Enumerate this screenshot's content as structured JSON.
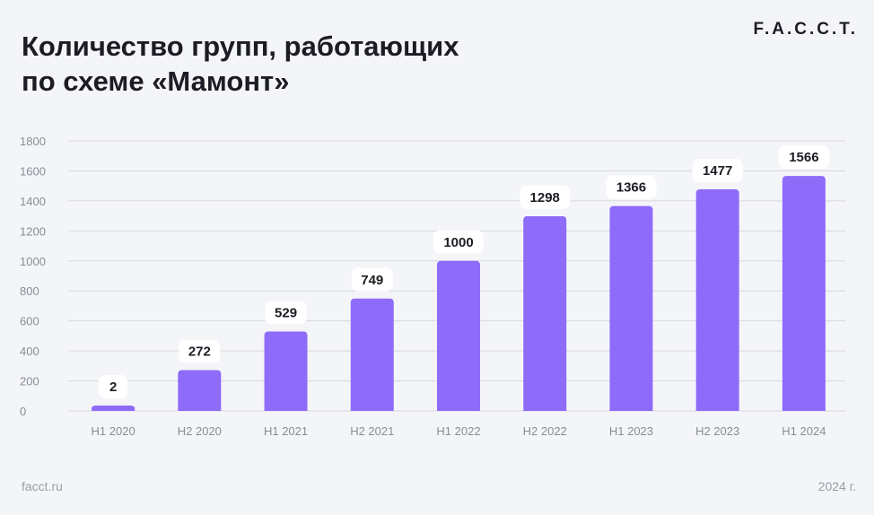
{
  "title_lines": [
    "Количество групп, работающих",
    "по схеме «Мамонт»"
  ],
  "brand": "F.A.C.C.T.",
  "footer": {
    "site": "facct.ru",
    "year": "2024 г."
  },
  "colors": {
    "bar": "#8f6bfa",
    "grid": "#d7d8de",
    "tick": "#8a8c96",
    "label": "#1c1c24",
    "label_bg": "#ffffff"
  },
  "chart_data": {
    "type": "bar",
    "categories": [
      "H1 2020",
      "H2 2020",
      "H1 2021",
      "H2 2021",
      "H1 2022",
      "H2 2022",
      "H1 2023",
      "H2 2023",
      "H1 2024"
    ],
    "values": [
      2,
      272,
      529,
      749,
      1000,
      1298,
      1366,
      1477,
      1566
    ],
    "ylim": [
      0,
      1800
    ],
    "yticks": [
      0,
      200,
      400,
      600,
      800,
      1000,
      1200,
      1400,
      1600,
      1800
    ],
    "grid": true,
    "data_labels": true
  }
}
